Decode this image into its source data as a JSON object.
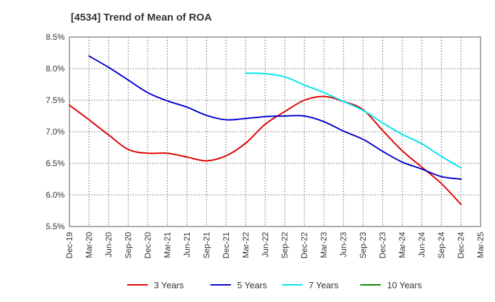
{
  "chart_data": {
    "type": "line",
    "title": "[4534]  Trend of Mean of ROA",
    "xlabel": "",
    "ylabel": "",
    "ylim": [
      5.5,
      8.5
    ],
    "yticks": [
      5.5,
      6.0,
      6.5,
      7.0,
      7.5,
      8.0,
      8.5
    ],
    "ytick_labels": [
      "5.5%",
      "6.0%",
      "6.5%",
      "7.0%",
      "7.5%",
      "8.0%",
      "8.5%"
    ],
    "categories": [
      "Dec-19",
      "Mar-20",
      "Jun-20",
      "Sep-20",
      "Dec-20",
      "Mar-21",
      "Jun-21",
      "Sep-21",
      "Dec-21",
      "Mar-22",
      "Jun-22",
      "Sep-22",
      "Dec-22",
      "Mar-23",
      "Jun-23",
      "Sep-23",
      "Dec-23",
      "Mar-24",
      "Jun-24",
      "Sep-24",
      "Dec-24",
      "Mar-25"
    ],
    "grid": true,
    "legend_position": "bottom",
    "colors": {
      "3 Years": "#dd0000",
      "5 Years": "#0000cc",
      "7 Years": "#00e5ee",
      "10 Years": "#008800",
      "grid": "#888888",
      "axis": "#555555"
    },
    "series": [
      {
        "name": "3 Years",
        "values": [
          7.42,
          7.19,
          6.95,
          6.72,
          6.66,
          6.66,
          6.6,
          6.54,
          6.62,
          6.82,
          7.12,
          7.32,
          7.5,
          7.56,
          7.48,
          7.35,
          7.02,
          6.7,
          6.44,
          6.18,
          5.85,
          null
        ]
      },
      {
        "name": "5 Years",
        "values": [
          null,
          8.2,
          8.02,
          7.82,
          7.62,
          7.49,
          7.39,
          7.26,
          7.19,
          7.21,
          7.24,
          7.25,
          7.25,
          7.16,
          7.01,
          6.88,
          6.69,
          6.52,
          6.41,
          6.29,
          6.25,
          null
        ]
      },
      {
        "name": "7 Years",
        "values": [
          null,
          null,
          null,
          null,
          null,
          null,
          null,
          null,
          null,
          7.93,
          7.92,
          7.87,
          7.74,
          7.62,
          7.48,
          7.34,
          7.14,
          6.96,
          6.81,
          6.61,
          6.43,
          null
        ]
      },
      {
        "name": "10 Years",
        "values": [
          null,
          null,
          null,
          null,
          null,
          null,
          null,
          null,
          null,
          null,
          null,
          null,
          null,
          null,
          null,
          null,
          null,
          null,
          null,
          null,
          null,
          null
        ]
      }
    ]
  }
}
